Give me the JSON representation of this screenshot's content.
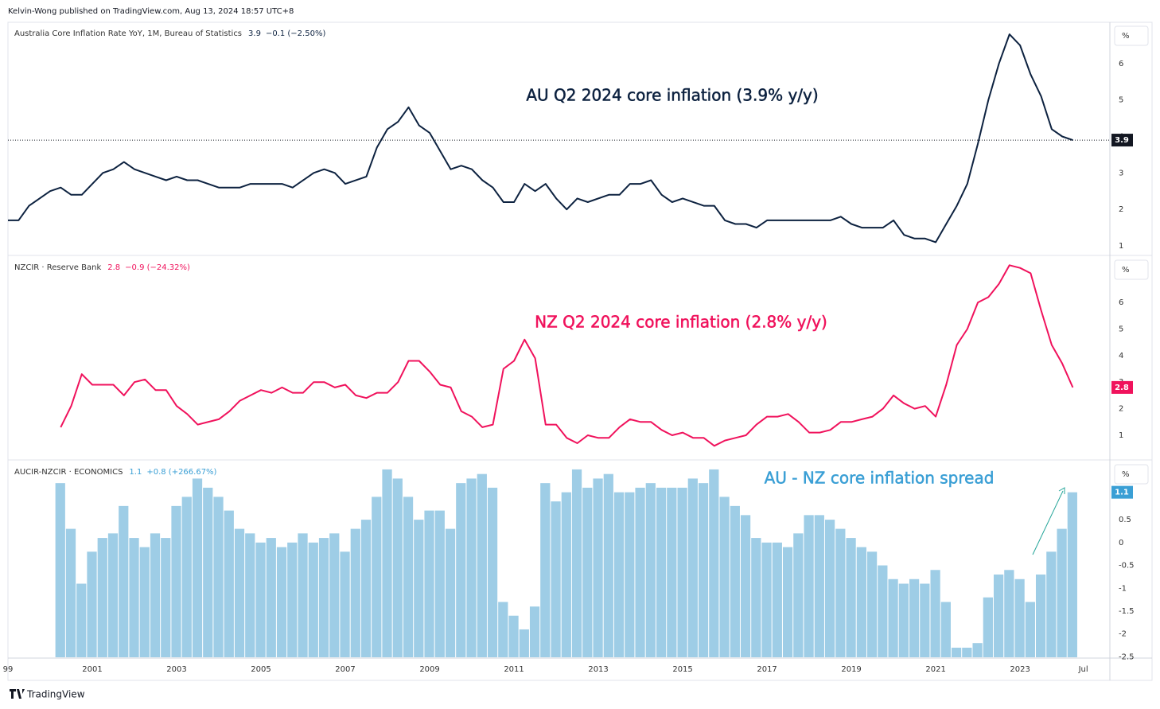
{
  "header": "Kelvin-Wong published on TradingView.com, Aug 13, 2024 18:57 UTC+8",
  "footer": "TradingView",
  "chart_data": [
    {
      "type": "line",
      "title": "Australia Core Inflation Rate YoY, 1M, Bureau of Statistics",
      "last_value": 3.9,
      "change": "−0.1 (−2.50%)",
      "unit": "%",
      "annotation": "AU Q2 2024 core inflation (3.9% y/y)",
      "color": "#0d2240",
      "price_line": true,
      "x": [
        1999.0,
        1999.25,
        1999.5,
        2000.0,
        2000.25,
        2000.5,
        2000.75,
        2001.25,
        2001.5,
        2001.75,
        2002.0,
        2002.5,
        2002.75,
        2003.0,
        2003.25,
        2003.5,
        2004.0,
        2004.5,
        2004.75,
        2005.5,
        2005.75,
        2006.25,
        2006.5,
        2006.75,
        2007.0,
        2007.5,
        2007.75,
        2008.0,
        2008.25,
        2008.5,
        2008.75,
        2009.0,
        2009.5,
        2009.75,
        2010.0,
        2010.25,
        2010.5,
        2010.75,
        2011.0,
        2011.25,
        2011.5,
        2011.75,
        2012.0,
        2012.25,
        2012.5,
        2012.75,
        2013.25,
        2013.5,
        2013.75,
        2014.0,
        2014.25,
        2014.5,
        2014.75,
        2015.0,
        2015.5,
        2015.75,
        2016.0,
        2016.25,
        2016.5,
        2016.75,
        2017.0,
        2018.5,
        2018.75,
        2019.0,
        2019.25,
        2019.75,
        2020.0,
        2020.25,
        2020.5,
        2020.75,
        2021.0,
        2021.25,
        2021.5,
        2021.75,
        2022.0,
        2022.25,
        2022.5,
        2022.75,
        2023.0,
        2023.25,
        2023.5,
        2023.75,
        2024.0,
        2024.25
      ],
      "values": [
        1.7,
        1.7,
        2.1,
        2.5,
        2.6,
        2.4,
        2.4,
        3.0,
        3.1,
        3.3,
        3.1,
        2.9,
        2.8,
        2.9,
        2.8,
        2.8,
        2.6,
        2.6,
        2.7,
        2.7,
        2.6,
        3.0,
        3.1,
        3.0,
        2.7,
        2.9,
        3.7,
        4.2,
        4.4,
        4.8,
        4.3,
        4.1,
        3.1,
        3.2,
        3.1,
        2.8,
        2.6,
        2.2,
        2.2,
        2.7,
        2.5,
        2.7,
        2.3,
        2.0,
        2.3,
        2.2,
        2.4,
        2.4,
        2.7,
        2.7,
        2.8,
        2.4,
        2.2,
        2.3,
        2.1,
        2.1,
        1.7,
        1.6,
        1.6,
        1.5,
        1.7,
        1.7,
        1.8,
        1.6,
        1.5,
        1.5,
        1.7,
        1.3,
        1.2,
        1.2,
        1.1,
        1.6,
        2.1,
        2.7,
        3.8,
        5.0,
        6.0,
        6.8,
        6.5,
        5.7,
        5.1,
        4.2,
        4.0,
        3.9
      ],
      "xlim": [
        1999,
        2025.13
      ],
      "ylim": [
        0.76,
        7.13
      ],
      "yticks": [
        1,
        2,
        3,
        4,
        5,
        6
      ]
    },
    {
      "type": "line",
      "title": "NZCIR · Reserve Bank",
      "last_value": 2.8,
      "change": "−0.9 (−24.32%)",
      "unit": "%",
      "annotation": "NZ Q2 2024 core inflation (2.8% y/y)",
      "color": "#f0125c",
      "price_line": false,
      "x": [
        2000.25,
        2000.5,
        2000.75,
        2001.0,
        2001.5,
        2001.75,
        2002.0,
        2002.25,
        2002.5,
        2002.75,
        2003.0,
        2003.25,
        2003.5,
        2004.0,
        2004.25,
        2004.5,
        2004.75,
        2005.0,
        2005.25,
        2005.5,
        2005.75,
        2006.0,
        2006.25,
        2006.5,
        2006.75,
        2007.0,
        2007.25,
        2007.5,
        2007.75,
        2008.0,
        2008.25,
        2008.5,
        2008.75,
        2009.0,
        2009.25,
        2009.5,
        2009.75,
        2010.0,
        2010.25,
        2010.5,
        2010.75,
        2011.0,
        2011.25,
        2011.5,
        2011.75,
        2012.0,
        2012.25,
        2012.5,
        2012.75,
        2013.0,
        2013.25,
        2013.5,
        2013.75,
        2014.0,
        2014.25,
        2014.5,
        2014.75,
        2015.0,
        2015.25,
        2015.5,
        2015.75,
        2016.0,
        2016.25,
        2016.5,
        2016.75,
        2017.0,
        2017.25,
        2017.5,
        2017.75,
        2018.0,
        2018.25,
        2018.5,
        2018.75,
        2019.0,
        2019.25,
        2019.5,
        2019.75,
        2020.0,
        2020.25,
        2020.5,
        2020.75,
        2021.0,
        2021.25,
        2021.5,
        2021.75,
        2022.0,
        2022.25,
        2022.5,
        2022.75,
        2023.0,
        2023.25,
        2023.5,
        2023.75,
        2024.0,
        2024.25
      ],
      "values": [
        1.3,
        2.1,
        3.3,
        2.9,
        2.9,
        2.5,
        3.0,
        3.1,
        2.7,
        2.7,
        2.1,
        1.8,
        1.4,
        1.6,
        1.9,
        2.3,
        2.5,
        2.7,
        2.6,
        2.8,
        2.6,
        2.6,
        3.0,
        3.0,
        2.8,
        2.9,
        2.5,
        2.4,
        2.6,
        2.6,
        3.0,
        3.8,
        3.8,
        3.4,
        2.9,
        2.8,
        1.9,
        1.7,
        1.3,
        1.4,
        3.5,
        3.8,
        4.6,
        3.9,
        1.4,
        1.4,
        0.9,
        0.7,
        1.0,
        0.9,
        0.9,
        1.3,
        1.6,
        1.5,
        1.5,
        1.2,
        1.0,
        1.1,
        0.9,
        0.9,
        0.6,
        0.8,
        0.9,
        1.0,
        1.4,
        1.7,
        1.7,
        1.8,
        1.5,
        1.1,
        1.1,
        1.2,
        1.5,
        1.5,
        1.6,
        1.7,
        2.0,
        2.5,
        2.2,
        2.0,
        2.1,
        1.7,
        2.9,
        4.4,
        5.0,
        6.0,
        6.2,
        6.7,
        7.4,
        7.3,
        7.1,
        5.7,
        4.4,
        3.7,
        2.8
      ],
      "xlim": [
        1999,
        2025.13
      ],
      "ylim": [
        0.1,
        7.74
      ],
      "yticks": [
        1,
        2,
        3,
        4,
        5,
        6
      ]
    },
    {
      "type": "bar",
      "title": "AUCIR-NZCIR · ECONOMICS",
      "last_value": 1.1,
      "change": "+0.8 (+266.67%)",
      "unit": "%",
      "annotation": "AU - NZ core inflation spread",
      "color": "#9ecde6",
      "label_color": "#3a9fd5",
      "price_line": false,
      "x": [
        2000.25,
        2000.5,
        2000.75,
        2001.0,
        2001.25,
        2001.5,
        2001.75,
        2002.0,
        2002.25,
        2002.5,
        2002.75,
        2003.0,
        2003.25,
        2003.5,
        2003.75,
        2004.0,
        2004.25,
        2004.5,
        2004.75,
        2005.0,
        2005.25,
        2005.5,
        2005.75,
        2006.0,
        2006.25,
        2006.5,
        2006.75,
        2007.0,
        2007.25,
        2007.5,
        2007.75,
        2008.0,
        2008.25,
        2008.5,
        2008.75,
        2009.0,
        2009.25,
        2009.5,
        2009.75,
        2010.0,
        2010.25,
        2010.5,
        2010.75,
        2011.0,
        2011.25,
        2011.5,
        2011.75,
        2012.0,
        2012.25,
        2012.5,
        2012.75,
        2013.0,
        2013.25,
        2013.5,
        2013.75,
        2014.0,
        2014.25,
        2014.5,
        2014.75,
        2015.0,
        2015.25,
        2015.5,
        2015.75,
        2016.0,
        2016.25,
        2016.5,
        2016.75,
        2017.0,
        2017.25,
        2017.5,
        2017.75,
        2018.0,
        2018.25,
        2018.5,
        2018.75,
        2019.0,
        2019.25,
        2019.5,
        2019.75,
        2020.0,
        2020.25,
        2020.5,
        2020.75,
        2021.0,
        2021.25,
        2021.5,
        2021.75,
        2022.0,
        2022.25,
        2022.5,
        2022.75,
        2023.0,
        2023.25,
        2023.5,
        2023.75,
        2024.0,
        2024.25
      ],
      "values": [
        1.3,
        0.3,
        -0.9,
        -0.2,
        0.1,
        0.2,
        0.8,
        0.1,
        -0.1,
        0.2,
        0.1,
        0.8,
        1.0,
        1.4,
        1.2,
        1.0,
        0.7,
        0.3,
        0.2,
        0.0,
        0.1,
        -0.1,
        0.0,
        0.2,
        0.0,
        0.1,
        0.2,
        -0.2,
        0.3,
        0.5,
        1.0,
        1.6,
        1.4,
        1.0,
        0.5,
        0.7,
        0.7,
        0.3,
        1.3,
        1.4,
        1.5,
        1.2,
        -1.3,
        -1.6,
        -1.9,
        -1.4,
        1.3,
        0.9,
        1.1,
        1.6,
        1.2,
        1.4,
        1.5,
        1.1,
        1.1,
        1.2,
        1.3,
        1.2,
        1.2,
        1.2,
        1.4,
        1.3,
        1.6,
        1.0,
        0.8,
        0.6,
        0.1,
        0.0,
        0.0,
        -0.1,
        0.2,
        0.6,
        0.6,
        0.5,
        0.3,
        0.1,
        -0.1,
        -0.2,
        -0.5,
        -0.8,
        -0.9,
        -0.8,
        -0.9,
        -0.6,
        -1.3,
        -2.3,
        -2.3,
        -2.2,
        -1.2,
        -0.7,
        -0.6,
        -0.8,
        -1.3,
        -0.7,
        -0.2,
        0.3,
        1.1
      ],
      "xlim": [
        1999,
        2025.13
      ],
      "ylim": [
        -2.51,
        1.79
      ],
      "yticks": [
        0.5,
        0,
        -0.5,
        -1,
        -1.5,
        -2,
        -2.5
      ],
      "xticks": [
        {
          "value": 1999,
          "label": "99"
        },
        2001,
        2003,
        2005,
        2007,
        2009,
        2011,
        2013,
        2015,
        2017,
        2019,
        2021,
        2023,
        {
          "value": 2024.5,
          "label": "Jul"
        }
      ]
    }
  ]
}
